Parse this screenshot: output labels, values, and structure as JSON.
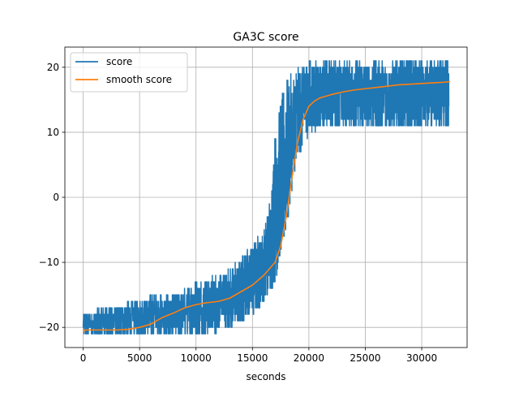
{
  "chart_data": {
    "type": "line",
    "title": "GA3C score",
    "xlabel": "seconds",
    "ylabel": "",
    "xlim": [
      -1620,
      34020
    ],
    "ylim": [
      -23.1,
      23.1
    ],
    "x_ticks": [
      0,
      5000,
      10000,
      15000,
      20000,
      25000,
      30000
    ],
    "y_ticks": [
      -20,
      -10,
      0,
      10,
      20
    ],
    "x_tick_labels": [
      "0",
      "5000",
      "10000",
      "15000",
      "20000",
      "25000",
      "30000"
    ],
    "y_tick_labels": [
      "−20",
      "−10",
      "0",
      "10",
      "20"
    ],
    "grid": true,
    "legend_position": "top-left",
    "series": [
      {
        "name": "score",
        "color": "#1f77b4",
        "style": "noisy",
        "x_range": [
          0,
          32400
        ],
        "samples_per_second": 0.074,
        "upper_envelope": {
          "x": [
            0,
            2000,
            3000,
            5000,
            6000,
            8000,
            10000,
            12000,
            13000,
            14000,
            15000,
            16000,
            16600,
            17000,
            17500,
            18000,
            19000,
            20000,
            32400
          ],
          "y": [
            -18,
            -17,
            -16.5,
            -16,
            -15,
            -15,
            -13,
            -12,
            -11,
            -9,
            -7,
            -5,
            0,
            10,
            15,
            18,
            20,
            21,
            21
          ]
        },
        "lower_envelope": {
          "x": [
            0,
            5000,
            10000,
            12000,
            13000,
            14000,
            15000,
            16000,
            17000,
            18000,
            19000,
            20000,
            22000,
            32400
          ],
          "y": [
            -21,
            -21,
            -21,
            -20.5,
            -20,
            -19,
            -18,
            -16,
            -13,
            -5,
            6,
            10,
            11,
            11
          ]
        }
      },
      {
        "name": "smooth score",
        "color": "#ff7f0e",
        "x": [
          0,
          100,
          1000,
          2000,
          3000,
          4000,
          5000,
          6000,
          7000,
          8000,
          9000,
          10000,
          11000,
          12000,
          13000,
          14000,
          15000,
          16000,
          16500,
          17000,
          17500,
          18000,
          18500,
          19000,
          19500,
          20000,
          20500,
          21000,
          22000,
          23000,
          24000,
          25000,
          26000,
          27000,
          28000,
          29000,
          30000,
          31000,
          32000,
          32500
        ],
        "y": [
          -20.8,
          -20.4,
          -20.4,
          -20.4,
          -20.4,
          -20.3,
          -20,
          -19.5,
          -18.5,
          -17.8,
          -17,
          -16.5,
          -16.2,
          -16,
          -15.5,
          -14.5,
          -13.5,
          -12,
          -11,
          -10,
          -7.5,
          -3,
          3,
          8.5,
          12,
          14,
          14.8,
          15.3,
          15.8,
          16.2,
          16.5,
          16.7,
          16.9,
          17.1,
          17.3,
          17.4,
          17.5,
          17.6,
          17.7,
          17.8
        ]
      }
    ]
  }
}
